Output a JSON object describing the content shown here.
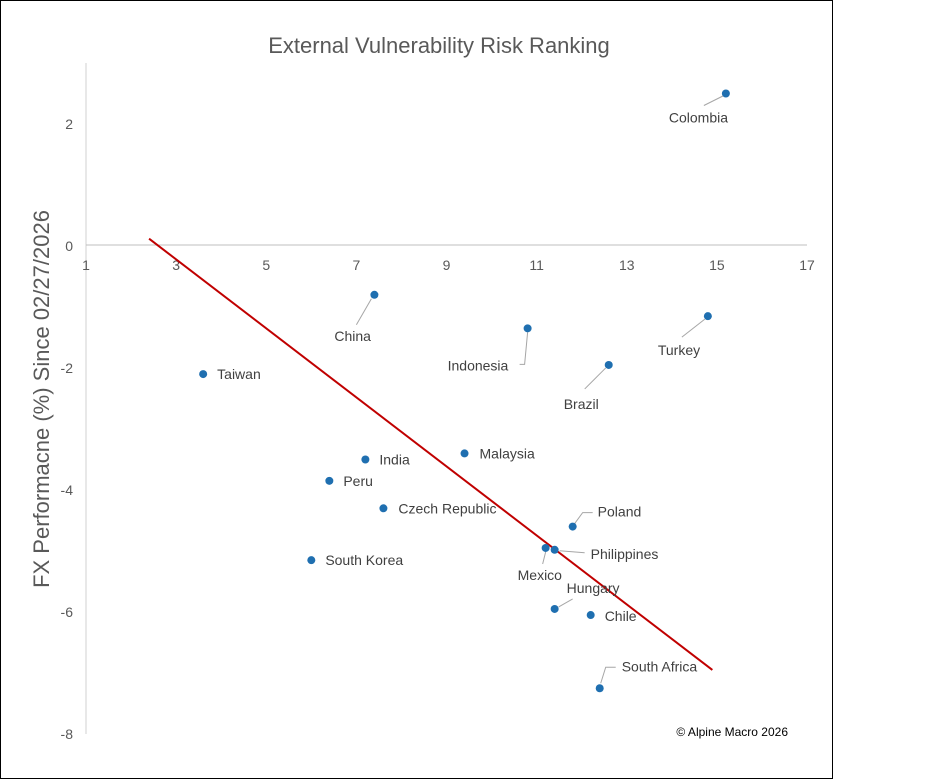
{
  "chart_data": {
    "type": "scatter",
    "title": "External Vulnerability Risk Ranking",
    "xlabel": "",
    "ylabel": "FX Performacne (%) Since 02/27/2026",
    "xlim": [
      1,
      17
    ],
    "ylim": [
      -8,
      3
    ],
    "xticks": [
      "1",
      "3",
      "5",
      "7",
      "9",
      "11",
      "13",
      "15",
      "17"
    ],
    "yticks": [
      "2",
      "0",
      "-2",
      "-4",
      "-6",
      "-8"
    ],
    "grid": false,
    "marker_color": "#1f6fb0",
    "trendline_color": "#c00000",
    "trendline": {
      "x": [
        2.4,
        14.9
      ],
      "y": [
        0.12,
        -6.95
      ]
    },
    "points": [
      {
        "label": "Colombia",
        "x": 15.2,
        "y": 2.5
      },
      {
        "label": "China",
        "x": 7.4,
        "y": -0.8
      },
      {
        "label": "Indonesia",
        "x": 10.8,
        "y": -1.35
      },
      {
        "label": "Turkey",
        "x": 14.8,
        "y": -1.15
      },
      {
        "label": "Brazil",
        "x": 12.6,
        "y": -1.95
      },
      {
        "label": "Taiwan",
        "x": 3.6,
        "y": -2.1
      },
      {
        "label": "Malaysia",
        "x": 9.4,
        "y": -3.4
      },
      {
        "label": "India",
        "x": 7.2,
        "y": -3.5
      },
      {
        "label": "Peru",
        "x": 6.4,
        "y": -3.85
      },
      {
        "label": "Czech Republic",
        "x": 7.6,
        "y": -4.3
      },
      {
        "label": "Poland",
        "x": 11.8,
        "y": -4.6
      },
      {
        "label": "South Korea",
        "x": 6.0,
        "y": -5.15
      },
      {
        "label": "Mexico",
        "x": 11.2,
        "y": -4.95
      },
      {
        "label": "Philippines",
        "x": 11.4,
        "y": -4.98
      },
      {
        "label": "Hungary",
        "x": 11.4,
        "y": -5.95
      },
      {
        "label": "Chile",
        "x": 12.2,
        "y": -6.05
      },
      {
        "label": "South Africa",
        "x": 12.4,
        "y": -7.25
      }
    ]
  },
  "copyright": "© Alpine Macro 2026"
}
